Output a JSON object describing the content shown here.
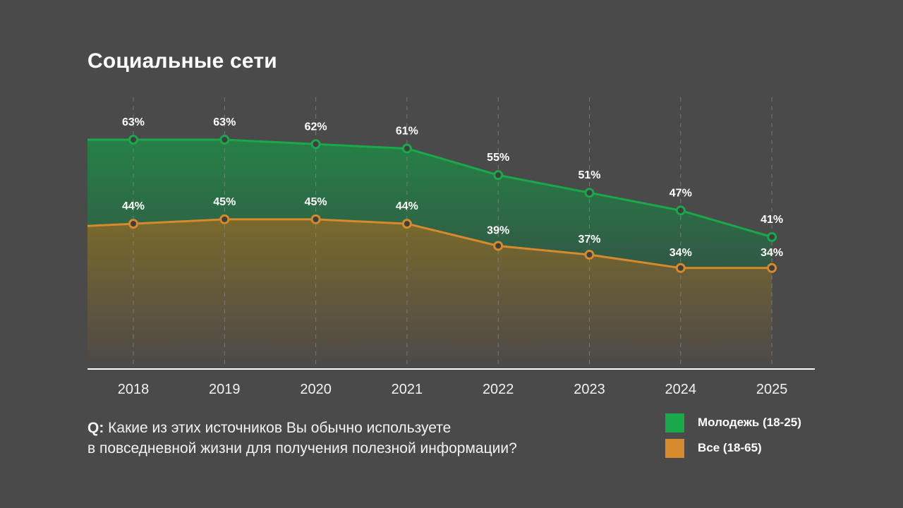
{
  "title": "Социальные сети",
  "question": {
    "prefix": "Q:",
    "line1": " Какие из этих источников Вы обычно используете",
    "line2": "в повседневной жизни для получения полезной информации?"
  },
  "colors": {
    "background": "#4a4a4a",
    "youth": "#19a94a",
    "all": "#d58a2c"
  },
  "chart_data": {
    "type": "area",
    "x": [
      "2018",
      "2019",
      "2020",
      "2021",
      "2022",
      "2023",
      "2024",
      "2025"
    ],
    "series": [
      {
        "name": "Молодежь (18-25)",
        "values": [
          63,
          63,
          62,
          61,
          55,
          51,
          47,
          41
        ],
        "labels": [
          "63%",
          "63%",
          "62%",
          "61%",
          "55%",
          "51%",
          "47%",
          "41%"
        ]
      },
      {
        "name": "Все (18-65)",
        "values": [
          44,
          45,
          45,
          44,
          39,
          37,
          34,
          34
        ],
        "labels": [
          "44%",
          "45%",
          "45%",
          "44%",
          "39%",
          "37%",
          "34%",
          "34%"
        ]
      }
    ],
    "unit": "%",
    "grid": "vertical dashed",
    "legend_position": "bottom-right"
  }
}
